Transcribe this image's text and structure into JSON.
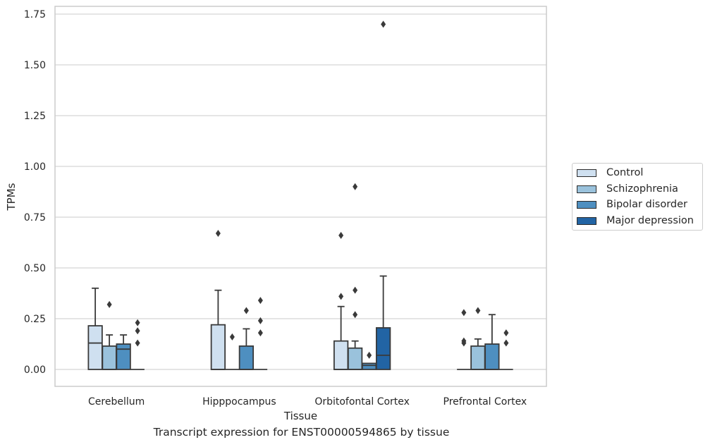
{
  "chart_data": {
    "type": "box",
    "caption": "Transcript expression for ENST00000594865 by tissue",
    "xlabel": "Tissue",
    "ylabel": "TPMs",
    "ylim": [
      -0.08,
      1.8
    ],
    "yticks": [
      "0.00",
      "0.25",
      "0.50",
      "0.75",
      "1.00",
      "1.25",
      "1.50",
      "1.75"
    ],
    "ytick_values": [
      0,
      0.25,
      0.5,
      0.75,
      1.0,
      1.25,
      1.5,
      1.75
    ],
    "grid": "horizontal",
    "legend_position": "right",
    "categories": [
      "Cerebellum",
      "Hipppocampus",
      "Orbitofontal Cortex",
      "Prefrontal Cortex"
    ],
    "series": [
      {
        "name": "Control",
        "color": "#cfe0f0",
        "boxes": [
          {
            "q1": 0,
            "median": 0.13,
            "q3": 0.215,
            "whislo": 0,
            "whishi": 0.4,
            "fliers": []
          },
          {
            "q1": 0,
            "median": 0,
            "q3": 0.22,
            "whislo": 0,
            "whishi": 0.39,
            "fliers": [
              0.67
            ]
          },
          {
            "q1": 0,
            "median": 0,
            "q3": 0.14,
            "whislo": 0,
            "whishi": 0.31,
            "fliers": [
              0.36,
              0.66
            ]
          },
          {
            "q1": 0,
            "median": 0,
            "q3": 0,
            "whislo": 0,
            "whishi": 0,
            "fliers": [
              0.13,
              0.14,
              0.28
            ]
          }
        ]
      },
      {
        "name": "Schizophrenia",
        "color": "#9ac2dc",
        "boxes": [
          {
            "q1": 0,
            "median": 0,
            "q3": 0.115,
            "whislo": 0,
            "whishi": 0.17,
            "fliers": [
              0.32
            ]
          },
          {
            "q1": 0,
            "median": 0,
            "q3": 0,
            "whislo": 0,
            "whishi": 0,
            "fliers": [
              0.16
            ]
          },
          {
            "q1": 0,
            "median": 0,
            "q3": 0.105,
            "whislo": 0,
            "whishi": 0.14,
            "fliers": [
              0.27,
              0.39,
              0.9
            ]
          },
          {
            "q1": 0,
            "median": 0,
            "q3": 0.115,
            "whislo": 0,
            "whishi": 0.15,
            "fliers": [
              0.29
            ]
          }
        ]
      },
      {
        "name": "Bipolar disorder",
        "color": "#4e8fc0",
        "boxes": [
          {
            "q1": 0,
            "median": 0.1,
            "q3": 0.125,
            "whislo": 0,
            "whishi": 0.17,
            "fliers": []
          },
          {
            "q1": 0,
            "median": 0,
            "q3": 0.115,
            "whislo": 0,
            "whishi": 0.2,
            "fliers": [
              0.29
            ]
          },
          {
            "q1": 0,
            "median": 0.02,
            "q3": 0.03,
            "whislo": 0,
            "whishi": 0.03,
            "fliers": [
              0.07
            ]
          },
          {
            "q1": 0,
            "median": 0,
            "q3": 0.125,
            "whislo": 0,
            "whishi": 0.27,
            "fliers": []
          }
        ]
      },
      {
        "name": "Major depression",
        "color": "#2264a4",
        "boxes": [
          {
            "q1": 0,
            "median": 0,
            "q3": 0,
            "whislo": 0,
            "whishi": 0,
            "fliers": [
              0.13,
              0.19,
              0.23
            ]
          },
          {
            "q1": 0,
            "median": 0,
            "q3": 0,
            "whislo": 0,
            "whishi": 0,
            "fliers": [
              0.18,
              0.24,
              0.34
            ]
          },
          {
            "q1": 0,
            "median": 0.07,
            "q3": 0.205,
            "whislo": 0,
            "whishi": 0.46,
            "fliers": [
              1.7
            ]
          },
          {
            "q1": 0,
            "median": 0,
            "q3": 0,
            "whislo": 0,
            "whishi": 0,
            "fliers": [
              0.13,
              0.18
            ]
          }
        ]
      }
    ]
  }
}
